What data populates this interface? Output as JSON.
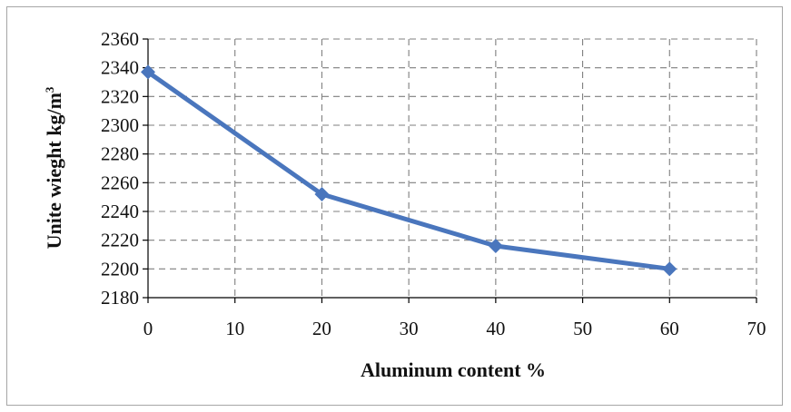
{
  "chart_data": {
    "type": "line",
    "xlabel": "Aluminum content %",
    "ylabel_main": "Unite wieght kg/m",
    "ylabel_sup": "3",
    "x": [
      0,
      20,
      40,
      60
    ],
    "series": [
      {
        "values": [
          2337,
          2252,
          2216,
          2200
        ]
      }
    ],
    "xlim": [
      0,
      70
    ],
    "ylim": [
      2180,
      2360
    ],
    "xticks": [
      0,
      10,
      20,
      30,
      40,
      50,
      60,
      70
    ],
    "yticks": [
      2180,
      2200,
      2220,
      2240,
      2260,
      2280,
      2300,
      2320,
      2340,
      2360
    ],
    "grid": true,
    "grid_style": "dashed",
    "marker": "diamond",
    "line_color": "#4a76bd",
    "grid_color": "#7f7f7f"
  }
}
